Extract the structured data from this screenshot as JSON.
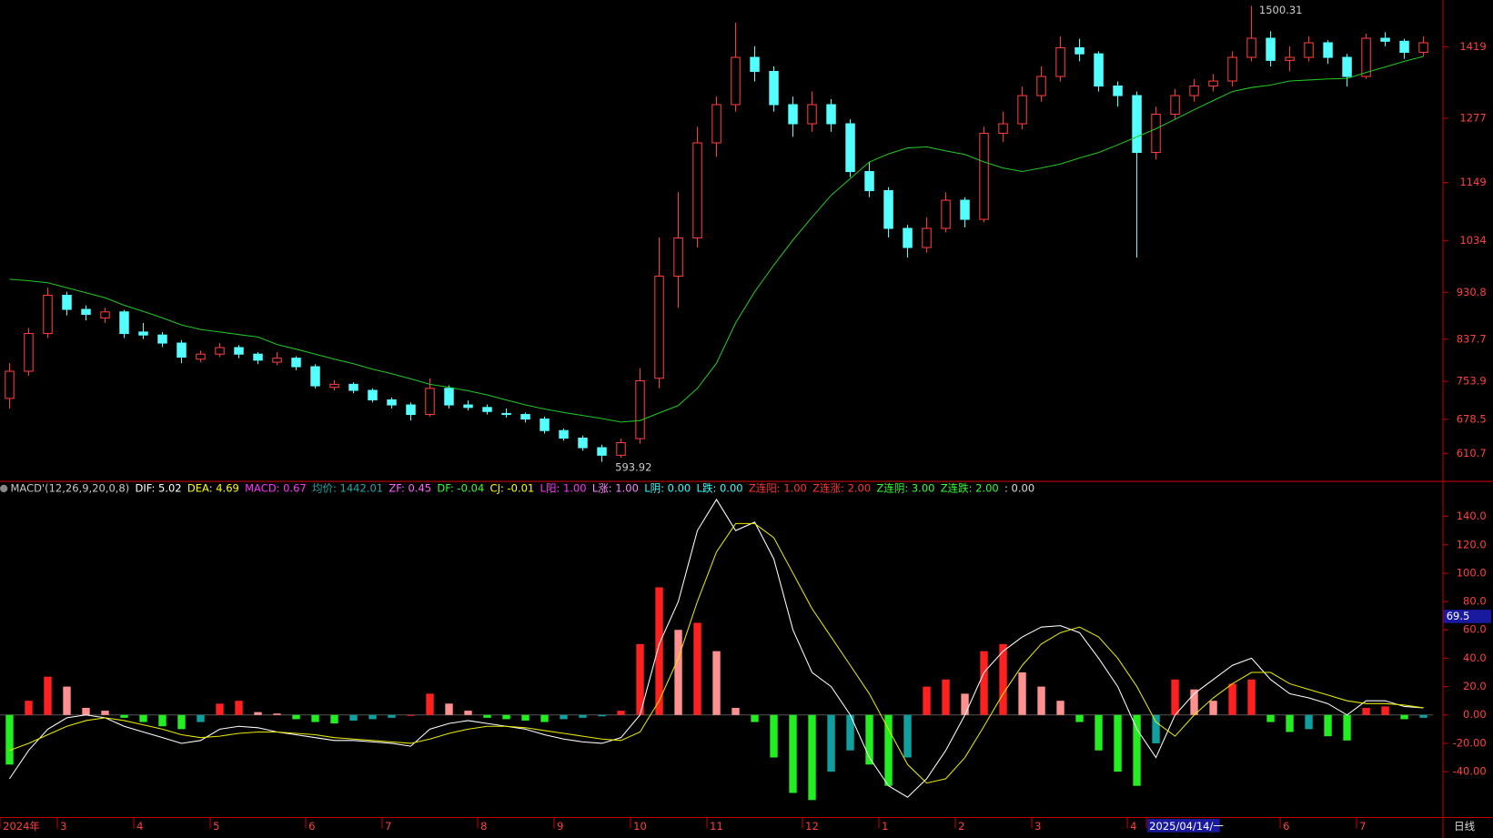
{
  "chart_data": {
    "type": "candlestick",
    "up_color": "#ff3c3c",
    "down_color": "#54ffff",
    "ylim": [
      556,
      1512
    ],
    "yticks": [
      1419,
      1277,
      1149,
      1034,
      930.8,
      837.7,
      753.9,
      678.5,
      610.7
    ],
    "categories": [
      "2024年",
      null,
      null,
      "3",
      null,
      null,
      null,
      "4",
      null,
      null,
      null,
      "5",
      null,
      null,
      null,
      null,
      "6",
      null,
      null,
      null,
      "7",
      null,
      null,
      null,
      null,
      "8",
      null,
      null,
      null,
      "9",
      null,
      null,
      null,
      "10",
      null,
      null,
      null,
      "11",
      null,
      null,
      null,
      null,
      "12",
      null,
      null,
      null,
      "1",
      null,
      null,
      null,
      "2",
      null,
      null,
      null,
      "3",
      null,
      null,
      null,
      null,
      "4",
      "2025/04/14/一",
      null,
      null,
      null,
      null,
      null,
      null,
      "6",
      null,
      null,
      null,
      "7",
      null,
      null,
      null
    ],
    "cursor_index": 60,
    "candles": [
      [
        720,
        790,
        700,
        774
      ],
      [
        774,
        860,
        765,
        849
      ],
      [
        849,
        940,
        840,
        925
      ],
      [
        925,
        932,
        885,
        897
      ],
      [
        897,
        905,
        875,
        887
      ],
      [
        880,
        900,
        870,
        892
      ],
      [
        892,
        896,
        840,
        849
      ],
      [
        852,
        870,
        838,
        846
      ],
      [
        846,
        852,
        822,
        830
      ],
      [
        830,
        836,
        790,
        802
      ],
      [
        798,
        815,
        792,
        808
      ],
      [
        808,
        830,
        802,
        821
      ],
      [
        821,
        826,
        800,
        808
      ],
      [
        808,
        812,
        788,
        796
      ],
      [
        792,
        812,
        786,
        800
      ],
      [
        800,
        804,
        776,
        783
      ],
      [
        783,
        788,
        740,
        745
      ],
      [
        742,
        756,
        736,
        748
      ],
      [
        748,
        752,
        730,
        736
      ],
      [
        736,
        740,
        712,
        717
      ],
      [
        717,
        722,
        700,
        707
      ],
      [
        707,
        712,
        676,
        688
      ],
      [
        688,
        760,
        684,
        740
      ],
      [
        740,
        746,
        700,
        707
      ],
      [
        707,
        716,
        696,
        702
      ],
      [
        702,
        708,
        688,
        694
      ],
      [
        690,
        700,
        682,
        688
      ],
      [
        688,
        692,
        672,
        679
      ],
      [
        679,
        684,
        650,
        656
      ],
      [
        656,
        660,
        636,
        641
      ],
      [
        641,
        646,
        616,
        622
      ],
      [
        622,
        628,
        593.92,
        607
      ],
      [
        607,
        640,
        602,
        632
      ],
      [
        640,
        780,
        630,
        755
      ],
      [
        760,
        1040,
        740,
        963
      ],
      [
        963,
        1130,
        900,
        1039
      ],
      [
        1039,
        1260,
        1020,
        1228
      ],
      [
        1228,
        1320,
        1200,
        1304
      ],
      [
        1304,
        1467,
        1290,
        1398
      ],
      [
        1398,
        1420,
        1350,
        1370
      ],
      [
        1370,
        1380,
        1290,
        1304
      ],
      [
        1304,
        1320,
        1240,
        1266
      ],
      [
        1266,
        1330,
        1250,
        1304
      ],
      [
        1304,
        1315,
        1250,
        1266
      ],
      [
        1266,
        1275,
        1160,
        1171
      ],
      [
        1171,
        1190,
        1120,
        1133
      ],
      [
        1133,
        1140,
        1040,
        1058
      ],
      [
        1058,
        1065,
        1000,
        1020
      ],
      [
        1020,
        1080,
        1010,
        1058
      ],
      [
        1058,
        1130,
        1050,
        1114
      ],
      [
        1114,
        1120,
        1060,
        1076
      ],
      [
        1076,
        1260,
        1070,
        1247
      ],
      [
        1247,
        1290,
        1230,
        1266
      ],
      [
        1266,
        1340,
        1255,
        1322
      ],
      [
        1322,
        1380,
        1310,
        1360
      ],
      [
        1360,
        1440,
        1350,
        1417
      ],
      [
        1417,
        1435,
        1390,
        1405
      ],
      [
        1405,
        1410,
        1330,
        1341
      ],
      [
        1341,
        1350,
        1300,
        1322
      ],
      [
        1322,
        1330,
        1000,
        1209
      ],
      [
        1209,
        1300,
        1195,
        1285
      ],
      [
        1285,
        1335,
        1275,
        1322
      ],
      [
        1322,
        1355,
        1310,
        1341
      ],
      [
        1341,
        1365,
        1330,
        1351
      ],
      [
        1351,
        1410,
        1340,
        1398
      ],
      [
        1398,
        1500.31,
        1390,
        1436
      ],
      [
        1436,
        1450,
        1380,
        1392
      ],
      [
        1392,
        1420,
        1370,
        1398
      ],
      [
        1398,
        1440,
        1390,
        1427
      ],
      [
        1427,
        1432,
        1385,
        1398
      ],
      [
        1398,
        1405,
        1340,
        1360
      ],
      [
        1360,
        1445,
        1355,
        1436
      ],
      [
        1436,
        1448,
        1420,
        1430
      ],
      [
        1430,
        1435,
        1395,
        1408
      ],
      [
        1408,
        1440,
        1400,
        1427
      ]
    ],
    "high_mark": 65,
    "low_mark": 31,
    "ma": {
      "color": "#22c622",
      "values": [
        957,
        954,
        950,
        940,
        930,
        920,
        905,
        893,
        880,
        866,
        857,
        852,
        847,
        842,
        827,
        818,
        808,
        798,
        789,
        778,
        769,
        759,
        748,
        742,
        735,
        727,
        717,
        707,
        699,
        692,
        686,
        680,
        673,
        676,
        691,
        706,
        740,
        790,
        870,
        932,
        985,
        1035,
        1080,
        1124,
        1157,
        1190,
        1206,
        1218,
        1220,
        1212,
        1205,
        1190,
        1178,
        1171,
        1178,
        1186,
        1198,
        1209,
        1224,
        1240,
        1256,
        1275,
        1294,
        1312,
        1330,
        1338,
        1343,
        1351,
        1353,
        1355,
        1356,
        1368,
        1379,
        1390,
        1400
      ]
    },
    "macd": {
      "header": [
        {
          "text": "MACD'(12,26,9,20,0,8)",
          "color": "#c8c8c8"
        },
        {
          "text": "DIF: 5.02",
          "color": "#ffffff"
        },
        {
          "text": "DEA: 4.69",
          "color": "#ffff00"
        },
        {
          "text": "MACD: 0.67",
          "color": "#ff33ff"
        },
        {
          "text": "均价: 1442.01",
          "color": "#20a8a8"
        },
        {
          "text": "ZF: 0.45",
          "color": "#ff66ff"
        },
        {
          "text": "DF: -0.04",
          "color": "#33ff33"
        },
        {
          "text": "CJ: -0.01",
          "color": "#ffff00"
        },
        {
          "text": "L阳: 1.00",
          "color": "#ff33ff"
        },
        {
          "text": "L涨: 1.00",
          "color": "#ff88ff"
        },
        {
          "text": "L阴: 0.00",
          "color": "#33ffff"
        },
        {
          "text": "L跌: 0.00",
          "color": "#33ffff"
        },
        {
          "text": "Z连阳: 1.00",
          "color": "#ff3333"
        },
        {
          "text": "Z连涨: 2.00",
          "color": "#ff3333"
        },
        {
          "text": "Z连阴: 3.00",
          "color": "#33ff33"
        },
        {
          "text": "Z连跌: 2.00",
          "color": "#33ff33"
        },
        {
          "text": ": 0.00",
          "color": "#dddddd"
        }
      ],
      "ylim": [
        -72,
        155
      ],
      "yticks": [
        {
          "value": 140,
          "label": "140.0"
        },
        {
          "value": 120,
          "label": "120.0"
        },
        {
          "value": 100,
          "label": "100.0"
        },
        {
          "value": 80,
          "label": "80.0"
        },
        {
          "value": 60,
          "label": "60.0"
        },
        {
          "value": 40,
          "label": "40.0"
        },
        {
          "value": 20,
          "label": "20.0"
        },
        {
          "value": 0,
          "label": "0.00"
        },
        {
          "value": -20,
          "label": "-20.00"
        },
        {
          "value": -40,
          "label": "-40.00"
        }
      ],
      "cursor_value": 69.5,
      "dif_color": "#ffffff",
      "dea_color": "#e8e800",
      "hist": [
        -35,
        10,
        27,
        20,
        5,
        3,
        -2,
        -5,
        -8,
        -10,
        -5,
        8,
        10,
        2,
        1,
        -3,
        -5,
        -6,
        -4,
        -3,
        -2,
        0,
        15,
        8,
        3,
        -2,
        -3,
        -4,
        -5,
        -3,
        -2,
        -1,
        3,
        50,
        90,
        60,
        65,
        45,
        5,
        -5,
        -30,
        -55,
        -60,
        -40,
        -25,
        -35,
        -50,
        -30,
        20,
        25,
        15,
        45,
        50,
        30,
        20,
        10,
        -5,
        -25,
        -40,
        -50,
        -20,
        25,
        18,
        10,
        22,
        25,
        -5,
        -12,
        -10,
        -15,
        -18,
        5,
        6,
        -3,
        -2
      ],
      "dif": [
        -45,
        -25,
        -10,
        -2,
        0,
        -2,
        -8,
        -12,
        -16,
        -20,
        -18,
        -10,
        -8,
        -9,
        -12,
        -14,
        -16,
        -18,
        -18,
        -19,
        -20,
        -22,
        -10,
        -6,
        -4,
        -6,
        -8,
        -10,
        -14,
        -17,
        -19,
        -20,
        -16,
        0,
        50,
        80,
        130,
        152,
        130,
        136,
        110,
        60,
        30,
        20,
        0,
        -30,
        -50,
        -58,
        -45,
        -25,
        0,
        30,
        45,
        55,
        62,
        63,
        58,
        40,
        20,
        -10,
        -30,
        0,
        15,
        25,
        35,
        40,
        25,
        15,
        12,
        8,
        0,
        10,
        10,
        6,
        5
      ],
      "dea": [
        -25,
        -20,
        -14,
        -8,
        -4,
        -2,
        -4,
        -7,
        -10,
        -14,
        -16,
        -15,
        -13,
        -12,
        -12,
        -13,
        -14,
        -16,
        -17,
        -18,
        -19,
        -20,
        -17,
        -13,
        -10,
        -8,
        -8,
        -9,
        -11,
        -13,
        -15,
        -17,
        -18,
        -12,
        10,
        40,
        80,
        115,
        135,
        135,
        125,
        100,
        75,
        55,
        35,
        15,
        -10,
        -35,
        -48,
        -45,
        -30,
        -8,
        15,
        35,
        50,
        58,
        62,
        55,
        40,
        20,
        -5,
        -15,
        0,
        12,
        22,
        30,
        30,
        22,
        18,
        14,
        10,
        8,
        8,
        7,
        5
      ]
    },
    "period_label": "日线"
  }
}
